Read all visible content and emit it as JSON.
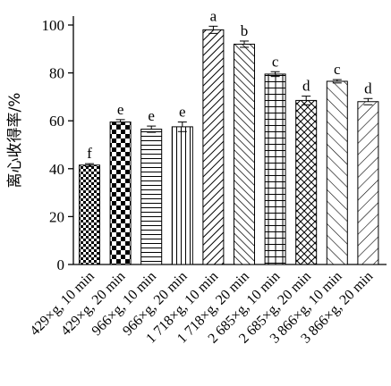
{
  "chart_data": {
    "type": "bar",
    "ylabel": "离心收得率/%",
    "xlabel": "",
    "title": "",
    "ylim": [
      0,
      100
    ],
    "yticks": [
      0,
      20,
      40,
      60,
      80,
      100
    ],
    "grid": false,
    "legend": "none",
    "categories": [
      "429×g, 10 min",
      "429×g, 20 min",
      "966×g, 10 min",
      "966×g, 20 min",
      "1 718×g, 10 min",
      "1 718×g, 20 min",
      "2 685×g, 10 min",
      "2 685×g, 20 min",
      "3 866×g, 10 min",
      "3 866×g, 20 min"
    ],
    "values": [
      41.5,
      59.5,
      56.5,
      57.5,
      98.0,
      92.0,
      79.5,
      68.5,
      76.5,
      68.0
    ],
    "errors": [
      0.6,
      1.0,
      1.3,
      2.0,
      1.5,
      1.3,
      1.0,
      1.8,
      0.7,
      1.3
    ],
    "significance": [
      "f",
      "e",
      "e",
      "e",
      "a",
      "b",
      "c",
      "d",
      "c",
      "d"
    ],
    "patterns": [
      "checker-small",
      "checker-large",
      "horizontal",
      "vertical",
      "diagonal-up",
      "diagonal-down",
      "grid",
      "crosshatch",
      "diagonal-down-wide",
      "diagonal-up-wide"
    ],
    "colors": {
      "bar_stroke": "#000000",
      "background": "#ffffff"
    }
  }
}
